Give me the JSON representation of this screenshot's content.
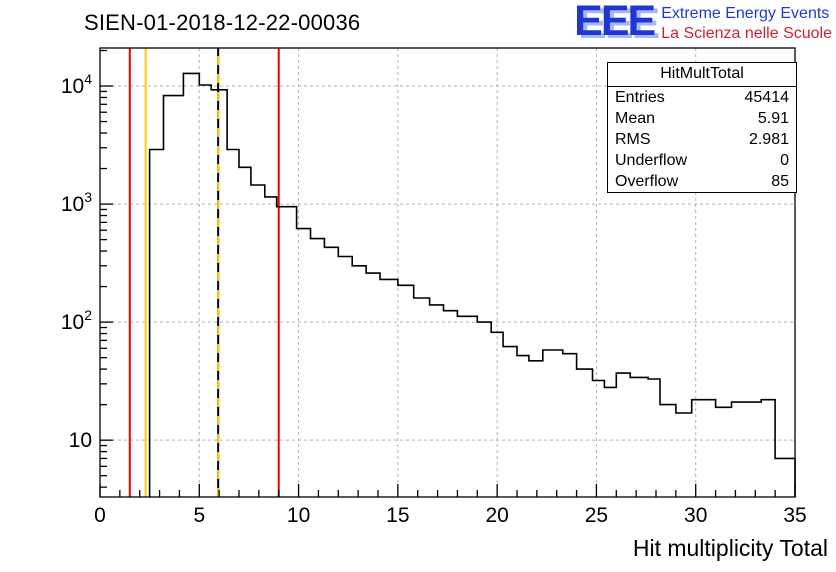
{
  "header": {
    "title": "SIEN-01-2018-12-22-00036",
    "logo": {
      "acronym": "EEE",
      "line1": "Extreme Energy Events",
      "line2": "La Scienza nelle Scuole",
      "blue": "#1f36d4",
      "red": "#cc2236"
    }
  },
  "stats_box": {
    "title": "HitMultTotal",
    "rows": [
      {
        "label": "Entries",
        "value": "45414"
      },
      {
        "label": "Mean",
        "value": "5.91"
      },
      {
        "label": "RMS",
        "value": "2.981"
      },
      {
        "label": "Underflow",
        "value": "0"
      },
      {
        "label": "Overflow",
        "value": "85"
      }
    ]
  },
  "chart_data": {
    "type": "bar",
    "subtype": "step-histogram",
    "title": "SIEN-01-2018-12-22-00036",
    "xlabel": "Hit multiplicity Total",
    "ylabel": "",
    "y_scale": "log",
    "xlim": [
      0,
      35
    ],
    "ylim_log": [
      3.3,
      21000
    ],
    "grid": "dashed",
    "grid_color": "#b3b3b3",
    "x_major_ticks": [
      0,
      5,
      10,
      15,
      20,
      25,
      30,
      35
    ],
    "y_major_ticks": [
      10,
      100,
      1000,
      10000
    ],
    "y_tick_labels": [
      {
        "value": 10,
        "mantissa": "10",
        "exp": ""
      },
      {
        "value": 100,
        "mantissa": "10",
        "exp": "2"
      },
      {
        "value": 1000,
        "mantissa": "10",
        "exp": "3"
      },
      {
        "value": 10000,
        "mantissa": "10",
        "exp": "4"
      }
    ],
    "histogram": {
      "name": "HitMultTotal",
      "color": "#000000",
      "steps_x": [
        2.5,
        3.2,
        4.2,
        5.0,
        5.6,
        6.4,
        7.0,
        7.6,
        8.3,
        8.9,
        9.9,
        10.6,
        11.3,
        12.0,
        12.7,
        13.4,
        14.1,
        15.0,
        15.8,
        16.6,
        17.3,
        18.0,
        19.0,
        19.7,
        20.3,
        21.0,
        21.6,
        22.3,
        23.3,
        24.0,
        24.8,
        25.4,
        26.0,
        26.7,
        27.6,
        28.2,
        29.0,
        29.8,
        31.0,
        31.8,
        33.3,
        34.0,
        35
      ],
      "steps_y": [
        2900,
        8300,
        12800,
        10200,
        9300,
        2900,
        2050,
        1450,
        1150,
        950,
        620,
        510,
        430,
        360,
        300,
        260,
        230,
        205,
        160,
        140,
        125,
        112,
        100,
        82,
        62,
        52,
        47,
        58,
        54,
        40,
        32,
        28,
        37,
        34,
        33,
        20,
        17,
        22,
        19,
        21,
        22,
        7
      ]
    },
    "marker_lines": [
      {
        "x": 1.5,
        "color": "#ee0000",
        "style": "solid",
        "name": "red-threshold-low"
      },
      {
        "x": 2.3,
        "color": "#ffcc00",
        "style": "solid",
        "name": "yellow-threshold-low"
      },
      {
        "x": 5.95,
        "color": "#ffcc00",
        "style": "dashed",
        "name": "mean-line"
      },
      {
        "x": 9.0,
        "color": "#ee0000",
        "style": "solid",
        "name": "red-threshold-high"
      }
    ]
  }
}
